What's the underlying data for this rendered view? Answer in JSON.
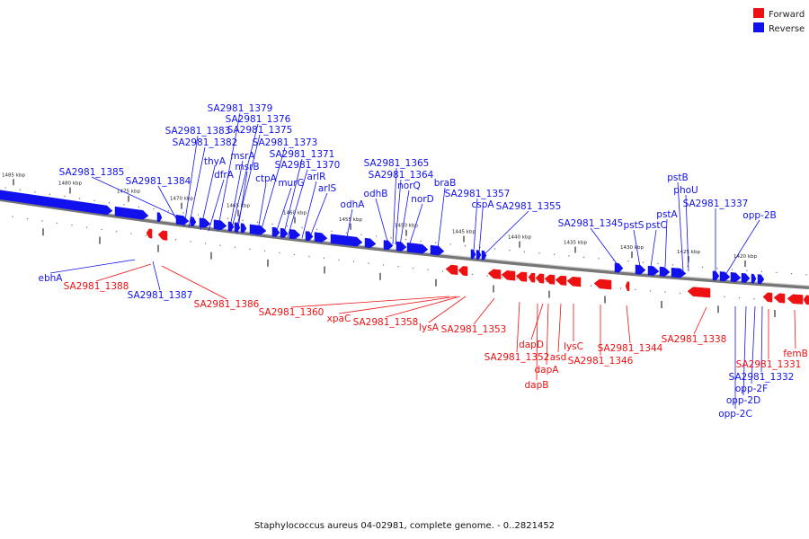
{
  "legend": {
    "forward_label": "Forward",
    "reverse_label": "Reverse",
    "forward_color": "#ee1111",
    "reverse_color": "#1111ee"
  },
  "caption": "Staphylococcus aureus 04-02981, complete genome. - 0..2821452",
  "track": {
    "tick_labels": [
      "1485 kbp",
      "1480 kbp",
      "1475 kbp",
      "1470 kbp",
      "1465 kbp",
      "1460 kbp",
      "1455 kbp",
      "1450 kbp",
      "1445 kbp",
      "1440 kbp",
      "1435 kbp",
      "1430 kbp",
      "1425 kbp",
      "1420 kbp"
    ]
  },
  "genes": {
    "reverse": [
      "SA2981_1385",
      "SA2981_1384",
      "SA2981_1383",
      "SA2981_1382",
      "SA2981_1379",
      "SA2981_1376",
      "SA2981_1375",
      "thyA",
      "dfrA",
      "msrA",
      "msrB",
      "ctpA",
      "SA2981_1373",
      "murG",
      "SA2981_1371",
      "SA2981_1370",
      "arlR",
      "arlS",
      "odhA",
      "odhB",
      "SA2981_1365",
      "SA2981_1364",
      "norQ",
      "norD",
      "braB",
      "SA2981_1357",
      "cspA",
      "SA2981_1355",
      "SA2981_1345",
      "pstS",
      "pstC",
      "pstA",
      "pstB",
      "phoU",
      "SA2981_1337",
      "opp-2B",
      "ebhA",
      "SA2981_1387",
      "SA2981_1332",
      "opp-2F",
      "opp-2D",
      "opp-2C"
    ],
    "forward": [
      "SA2981_1388",
      "SA2981_1386",
      "SA2981_1360",
      "xpaC",
      "SA2981_1358",
      "lysA",
      "SA2981_1353",
      "dapD",
      "SA2981_1352",
      "asd",
      "dapA",
      "dapB",
      "lysC",
      "SA2981_1346",
      "SA2981_1344",
      "SA2981_1338",
      "SA2981_1331",
      "femB"
    ]
  }
}
